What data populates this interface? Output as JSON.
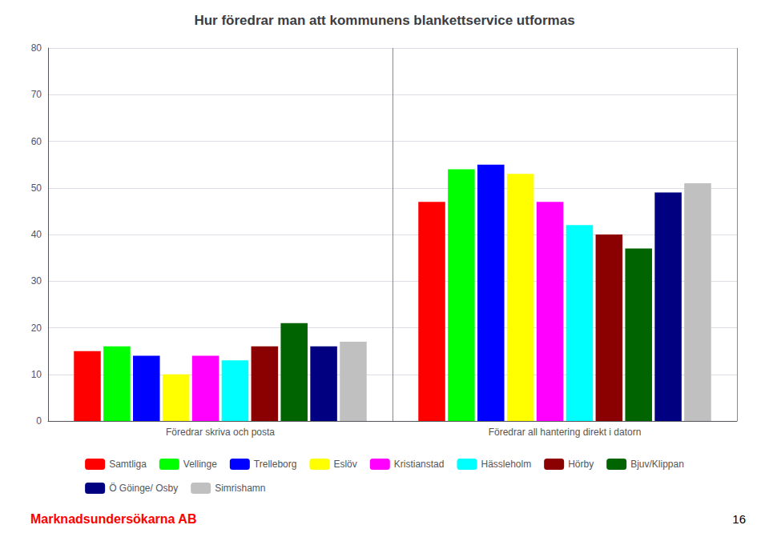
{
  "chart_data": {
    "type": "bar",
    "title": "Hur föredrar man att kommunens blankettservice utformas",
    "categories": [
      "Föredrar skriva och posta",
      "Föredrar all hantering direkt i datorn"
    ],
    "series": [
      {
        "name": "Samtliga",
        "color": "#FF0000",
        "values": [
          15,
          47
        ]
      },
      {
        "name": "Vellinge",
        "color": "#00FF00",
        "values": [
          16,
          54
        ]
      },
      {
        "name": "Trelleborg",
        "color": "#0000FF",
        "values": [
          14,
          55
        ]
      },
      {
        "name": "Eslöv",
        "color": "#FFFF00",
        "values": [
          10,
          53
        ]
      },
      {
        "name": "Kristianstad",
        "color": "#FF00FF",
        "values": [
          14,
          47
        ]
      },
      {
        "name": "Hässleholm",
        "color": "#00FFFF",
        "values": [
          13,
          42
        ]
      },
      {
        "name": "Hörby",
        "color": "#8B0000",
        "values": [
          16,
          40
        ]
      },
      {
        "name": "Bjuv/Klippan",
        "color": "#006400",
        "values": [
          21,
          37
        ]
      },
      {
        "name": "Ö Göinge/ Osby",
        "color": "#000080",
        "values": [
          16,
          49
        ]
      },
      {
        "name": "Simrishamn",
        "color": "#C0C0C0",
        "values": [
          17,
          51
        ]
      }
    ],
    "ylim": [
      0,
      80
    ],
    "yticks": [
      0,
      10,
      20,
      30,
      40,
      50,
      60,
      70,
      80
    ],
    "grid": true,
    "legend": "bottom",
    "annotations": [
      {
        "text": "Marknadsundersökarna AB",
        "color": "#FF0000"
      },
      {
        "text": "16"
      }
    ]
  }
}
